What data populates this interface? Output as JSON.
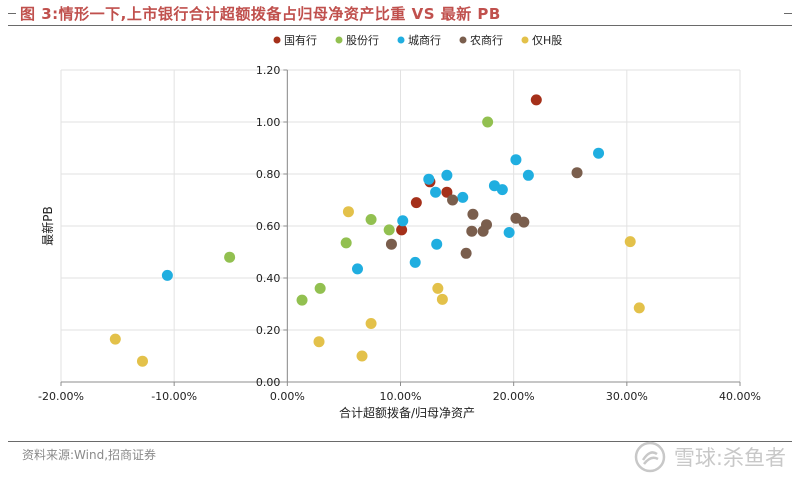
{
  "figure": {
    "title": "图 3:情形一下,上市银行合计超额拨备占归母净资产比重 VS 最新 PB",
    "title_color": "#c0504d"
  },
  "source": "资料来源:Wind,招商证券",
  "watermark": {
    "icon": "snowball-logo-icon",
    "text": "雪球:杀鱼者"
  },
  "chart_data": {
    "type": "scatter",
    "title": "",
    "xlabel": "合计超额拨备/归母净资产",
    "ylabel": "最新PB",
    "xlim": [
      -0.2,
      0.4
    ],
    "ylim": [
      0,
      1.2
    ],
    "x_ticks": [
      -0.2,
      -0.1,
      0,
      0.1,
      0.2,
      0.3,
      0.4
    ],
    "x_tick_labels": [
      "-20.00%",
      "-10.00%",
      "0.00%",
      "10.00%",
      "20.00%",
      "30.00%",
      "40.00%"
    ],
    "y_ticks": [
      0,
      0.2,
      0.4,
      0.6,
      0.8,
      1.0,
      1.2
    ],
    "y_tick_labels": [
      "0.00",
      "0.20",
      "0.40",
      "0.60",
      "0.80",
      "1.00",
      "1.20"
    ],
    "grid": "vertical and horizontal",
    "legend_position": "top",
    "series": [
      {
        "name": "国有行",
        "color": "#a5301a",
        "points": [
          [
            0.22,
            1.085
          ],
          [
            0.101,
            0.585
          ],
          [
            0.114,
            0.69
          ],
          [
            0.126,
            0.77
          ],
          [
            0.141,
            0.73
          ]
        ]
      },
      {
        "name": "股份行",
        "color": "#92c050",
        "points": [
          [
            0.177,
            1.0
          ],
          [
            -0.051,
            0.48
          ],
          [
            0.013,
            0.315
          ],
          [
            0.029,
            0.36
          ],
          [
            0.052,
            0.535
          ],
          [
            0.074,
            0.625
          ],
          [
            0.09,
            0.585
          ]
        ]
      },
      {
        "name": "城商行",
        "color": "#20aee0",
        "points": [
          [
            -0.106,
            0.41
          ],
          [
            0.062,
            0.435
          ],
          [
            0.102,
            0.62
          ],
          [
            0.113,
            0.46
          ],
          [
            0.125,
            0.78
          ],
          [
            0.131,
            0.73
          ],
          [
            0.132,
            0.53
          ],
          [
            0.141,
            0.795
          ],
          [
            0.155,
            0.71
          ],
          [
            0.183,
            0.755
          ],
          [
            0.19,
            0.74
          ],
          [
            0.196,
            0.575
          ],
          [
            0.202,
            0.855
          ],
          [
            0.213,
            0.795
          ],
          [
            0.275,
            0.88
          ]
        ]
      },
      {
        "name": "农商行",
        "color": "#7a5e4d",
        "points": [
          [
            0.092,
            0.53
          ],
          [
            0.146,
            0.7
          ],
          [
            0.158,
            0.495
          ],
          [
            0.163,
            0.58
          ],
          [
            0.164,
            0.645
          ],
          [
            0.173,
            0.58
          ],
          [
            0.176,
            0.605
          ],
          [
            0.202,
            0.63
          ],
          [
            0.209,
            0.615
          ],
          [
            0.256,
            0.805
          ]
        ]
      },
      {
        "name": "仅H股",
        "color": "#e3c14a",
        "points": [
          [
            -0.152,
            0.165
          ],
          [
            -0.128,
            0.08
          ],
          [
            0.028,
            0.155
          ],
          [
            0.054,
            0.655
          ],
          [
            0.066,
            0.1
          ],
          [
            0.074,
            0.225
          ],
          [
            0.133,
            0.36
          ],
          [
            0.137,
            0.318
          ],
          [
            0.303,
            0.54
          ],
          [
            0.311,
            0.285
          ]
        ]
      }
    ]
  }
}
